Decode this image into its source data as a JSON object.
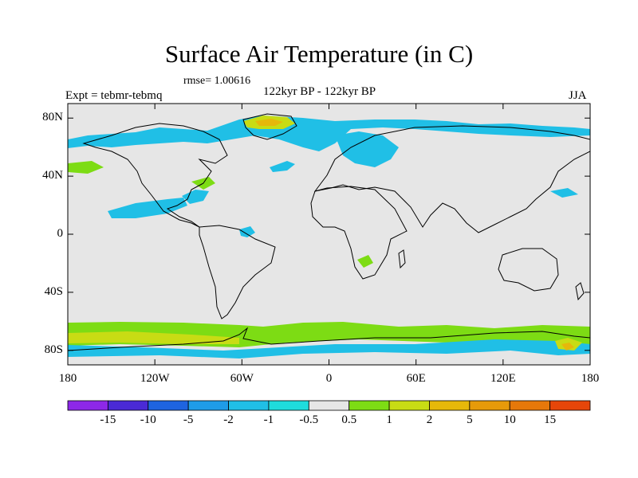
{
  "title": "Surface Air Temperature (in C)",
  "rmse": "rmse= 1.00616",
  "experiment": "Expt = tebmr-tebmq",
  "period": "122kyr BP - 122kyr BP",
  "season": "JJA",
  "map": {
    "projection": "cylindrical-equidistant",
    "lon_range": [
      -180,
      180
    ],
    "lat_range": [
      -90,
      90
    ],
    "land_fill_color": "#e6e6e6",
    "coastline_color": "#000000",
    "lat_ticks": [
      {
        "value": 80,
        "label": "80N"
      },
      {
        "value": 40,
        "label": "40N"
      },
      {
        "value": 0,
        "label": "0"
      },
      {
        "value": -40,
        "label": "40S"
      },
      {
        "value": -80,
        "label": "80S"
      }
    ],
    "lon_ticks": [
      {
        "value": -180,
        "label": "180"
      },
      {
        "value": -120,
        "label": "120W"
      },
      {
        "value": -60,
        "label": "60W"
      },
      {
        "value": 0,
        "label": "0"
      },
      {
        "value": 60,
        "label": "60E"
      },
      {
        "value": 120,
        "label": "120E"
      },
      {
        "value": 180,
        "label": "180"
      }
    ]
  },
  "colorbar": {
    "colors": [
      "#8d28e8",
      "#4a2ad6",
      "#1e64e0",
      "#1f9ce8",
      "#20bfe6",
      "#1fdcdc",
      "#e6e6e6",
      "#7ddc14",
      "#c8dc14",
      "#e6b80a",
      "#e69a0a",
      "#e6780a",
      "#e6460a"
    ],
    "labels": [
      "-15",
      "-10",
      "-5",
      "-2",
      "-1",
      "-0.5",
      "0.5",
      "1",
      "2",
      "5",
      "10",
      "15"
    ]
  }
}
